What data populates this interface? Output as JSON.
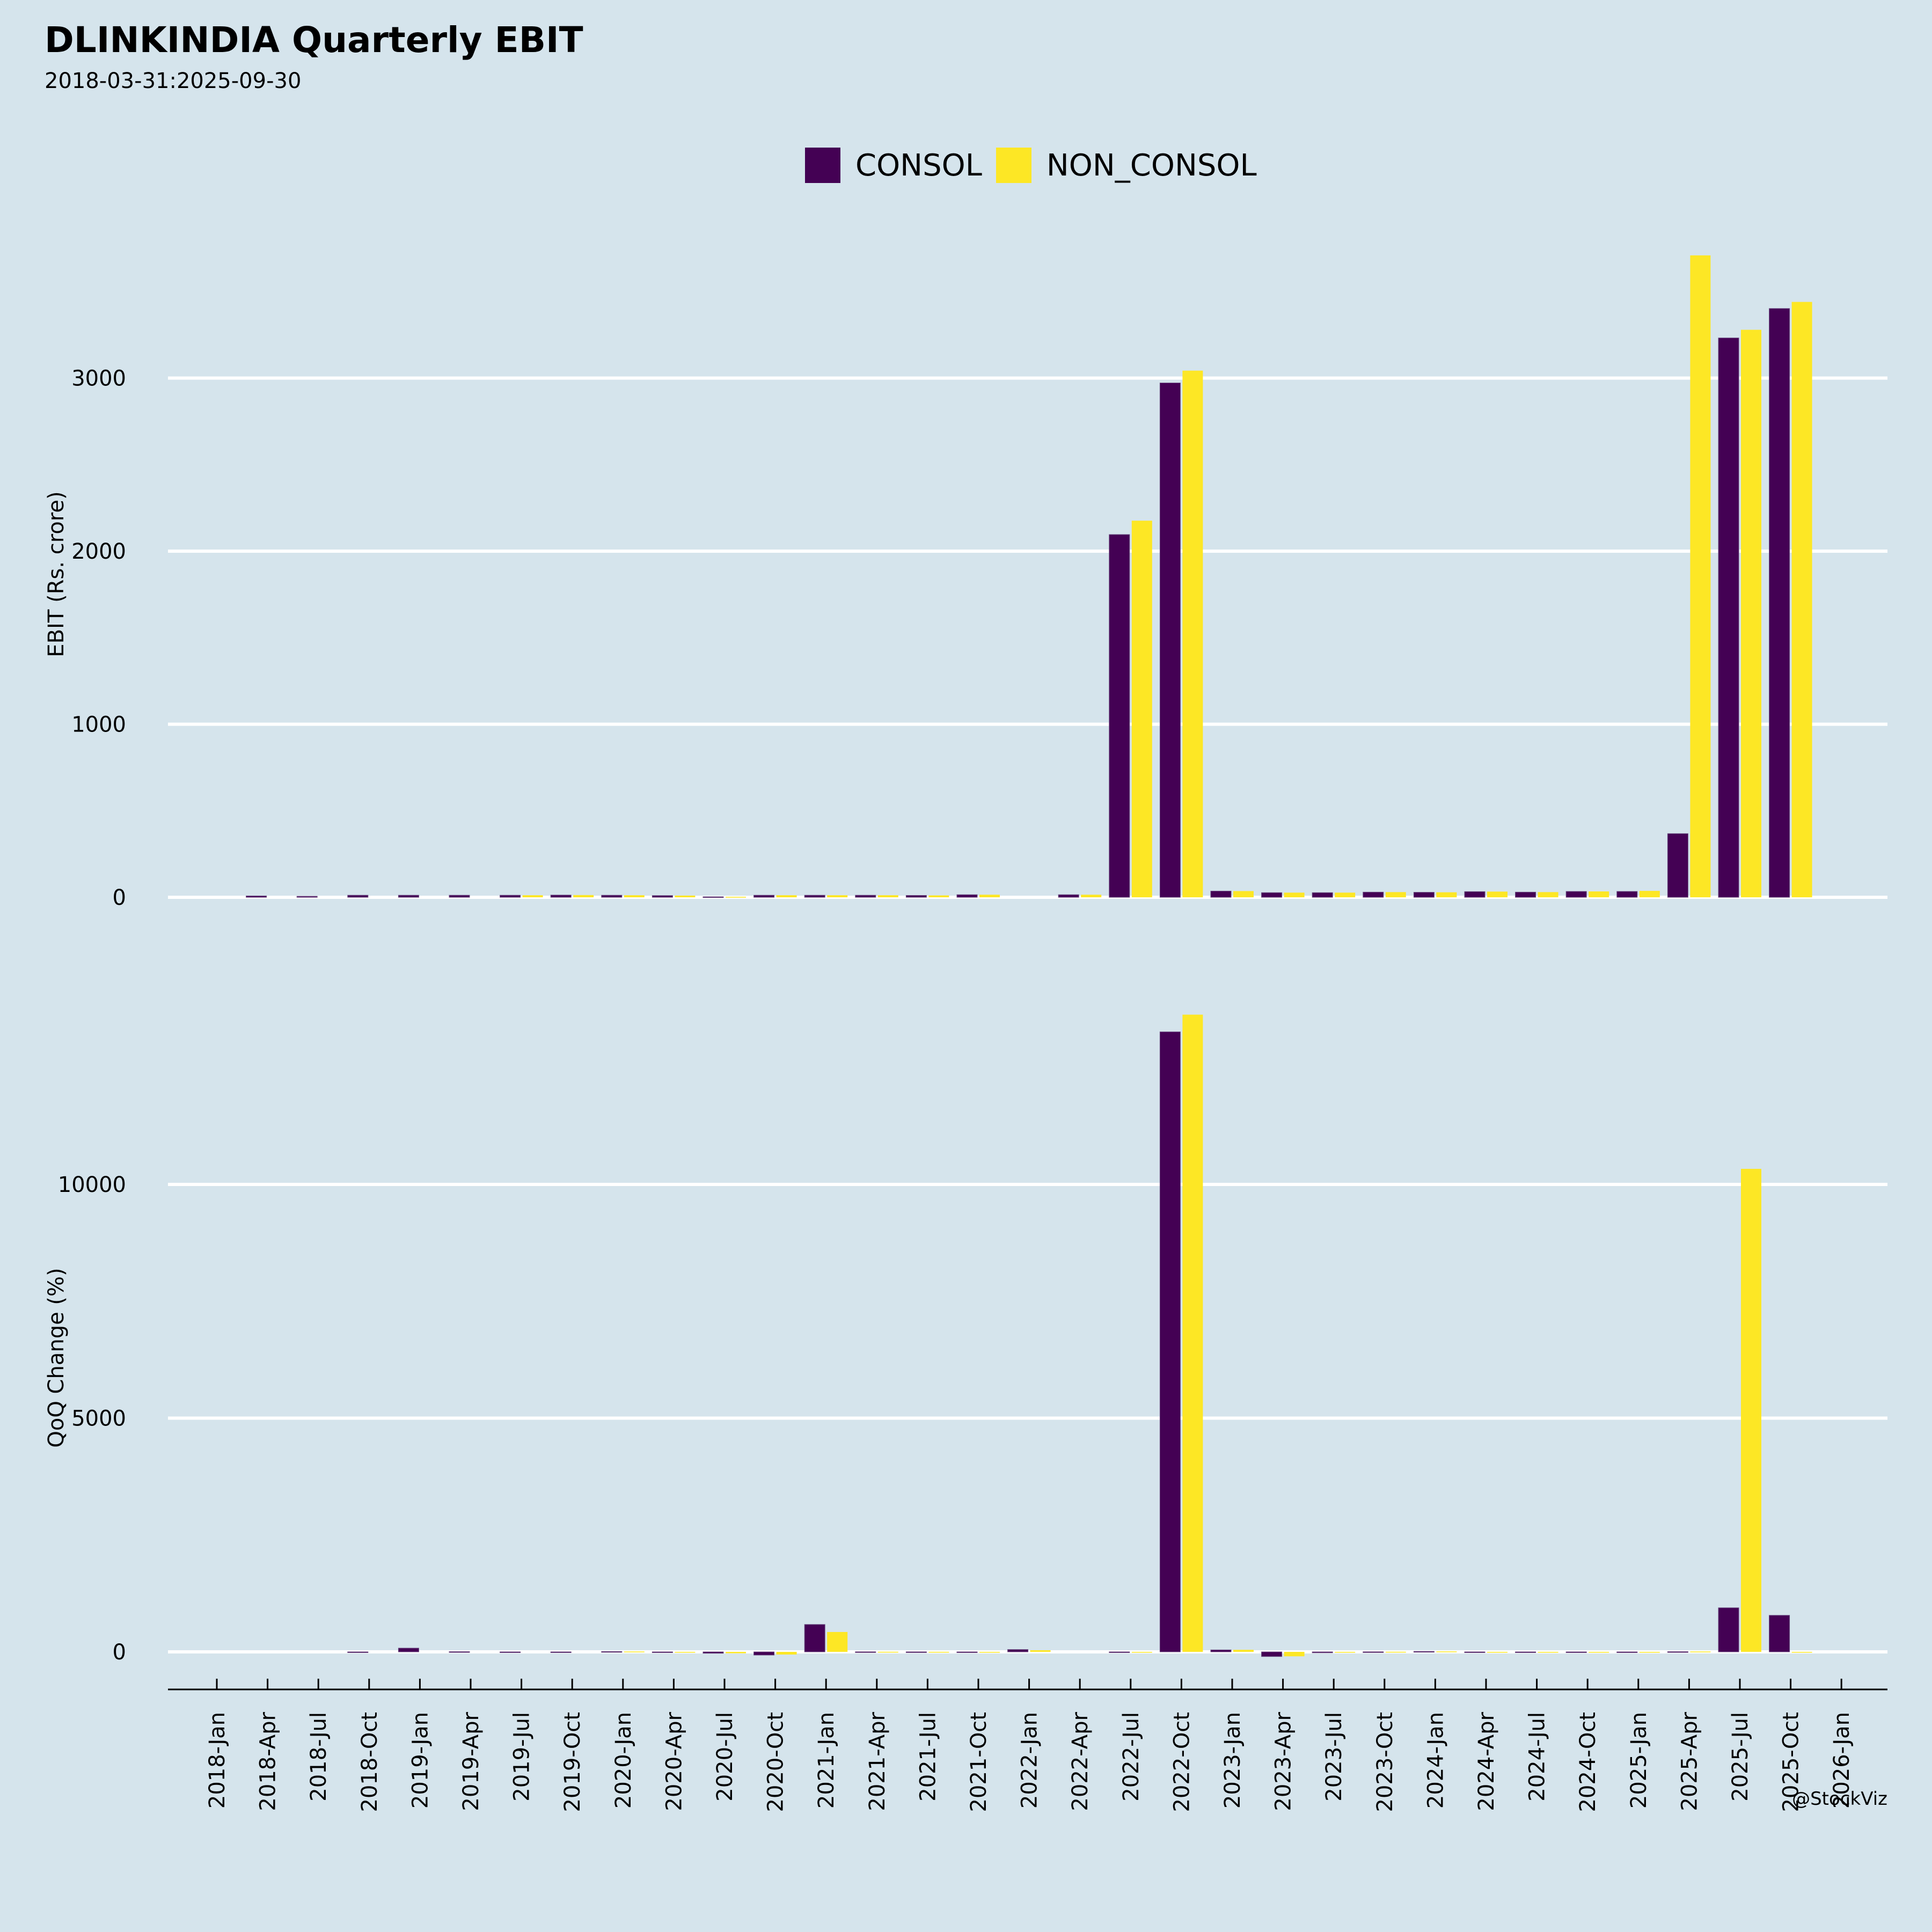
{
  "title": "DLINKINDIA Quarterly EBIT",
  "subtitle": "2018-03-31:2025-09-30",
  "watermark": "@StockViz",
  "colors": {
    "background": "#d5e4ec",
    "consol": "#440154",
    "non_consol": "#fde725",
    "grid": "#ffffff"
  },
  "legend": [
    {
      "label": "CONSOL",
      "color": "#440154"
    },
    {
      "label": "NON_CONSOL",
      "color": "#fde725"
    }
  ],
  "chart_data": [
    {
      "type": "bar",
      "title": "DLINKINDIA Quarterly EBIT",
      "xlabel": "",
      "ylabel": "EBIT (Rs. crore)",
      "ylim": [
        0,
        3900
      ],
      "yticks": [
        0,
        1000,
        2000,
        3000
      ],
      "grid": true,
      "legend_position": "top-center",
      "x": [
        "2018-03-31",
        "2018-06-30",
        "2018-09-30",
        "2018-12-31",
        "2019-03-31",
        "2019-06-30",
        "2019-09-30",
        "2019-12-31",
        "2020-03-31",
        "2020-06-30",
        "2020-09-30",
        "2020-12-31",
        "2021-03-31",
        "2021-06-30",
        "2021-09-30",
        "2021-12-31",
        "2022-03-31",
        "2022-06-30",
        "2022-09-30",
        "2022-12-31",
        "2023-03-31",
        "2023-06-30",
        "2023-09-30",
        "2023-12-31",
        "2024-03-31",
        "2024-06-30",
        "2024-09-30",
        "2024-12-31",
        "2025-03-31",
        "2025-06-30",
        "2025-09-30"
      ],
      "series": [
        {
          "name": "CONSOL",
          "values": [
            8,
            6,
            12,
            12,
            12,
            12,
            13,
            12,
            10,
            3,
            12,
            12,
            12,
            11,
            15,
            null,
            15,
            2096,
            2972,
            36,
            27,
            27,
            30,
            29,
            33,
            30,
            34,
            34,
            368,
            3232,
            3402
          ]
        },
        {
          "name": "NON_CONSOL",
          "values": [
            null,
            null,
            null,
            null,
            null,
            12,
            13,
            12,
            10,
            3,
            12,
            12,
            12,
            11,
            15,
            null,
            15,
            2176,
            3043,
            36,
            27,
            27,
            30,
            29,
            33,
            30,
            34,
            37,
            3709,
            3279,
            3440
          ]
        }
      ]
    },
    {
      "type": "bar",
      "xlabel": "",
      "ylabel": "QoQ Change (%)",
      "ylim": [
        -350,
        14500
      ],
      "yticks": [
        0,
        5000,
        10000
      ],
      "grid": true,
      "x": [
        "2018-03-31",
        "2018-06-30",
        "2018-09-30",
        "2018-12-31",
        "2019-03-31",
        "2019-06-30",
        "2019-09-30",
        "2019-12-31",
        "2020-03-31",
        "2020-06-30",
        "2020-09-30",
        "2020-12-31",
        "2021-03-31",
        "2021-06-30",
        "2021-09-30",
        "2021-12-31",
        "2022-03-31",
        "2022-06-30",
        "2022-09-30",
        "2022-12-31",
        "2023-03-31",
        "2023-06-30",
        "2023-09-30",
        "2023-12-31",
        "2024-03-31",
        "2024-06-30",
        "2024-09-30",
        "2024-12-31",
        "2025-03-31",
        "2025-06-30",
        "2025-09-30"
      ],
      "xtick_labels": [
        "2018-Jan",
        "2018-Apr",
        "2018-Jul",
        "2018-Oct",
        "2019-Jan",
        "2019-Apr",
        "2019-Jul",
        "2019-Oct",
        "2020-Jan",
        "2020-Apr",
        "2020-Jul",
        "2020-Oct",
        "2021-Jan",
        "2021-Apr",
        "2021-Jul",
        "2021-Oct",
        "2022-Jan",
        "2022-Apr",
        "2022-Jul",
        "2022-Oct",
        "2023-Jan",
        "2023-Apr",
        "2023-Jul",
        "2023-Oct",
        "2024-Jan",
        "2024-Apr",
        "2024-Jul",
        "2024-Oct",
        "2025-Jan",
        "2025-Apr",
        "2025-Jul",
        "2025-Oct",
        "2026-Jan"
      ],
      "series": [
        {
          "name": "CONSOL",
          "values": [
            null,
            null,
            -15,
            80,
            5,
            -5,
            0,
            8,
            -8,
            -30,
            -69,
            586,
            2,
            1,
            -15,
            50,
            null,
            0,
            13264,
            42,
            -100,
            -20,
            2,
            10,
            -5,
            -8,
            -5,
            -10,
            5,
            943,
            782
          ]
        },
        {
          "name": "NON_CONSOL",
          "values": [
            null,
            null,
            null,
            null,
            null,
            null,
            null,
            8,
            -8,
            -30,
            -57,
            425,
            2,
            1,
            -10,
            35,
            null,
            0,
            13632,
            44,
            -95,
            -15,
            2,
            10,
            -5,
            -8,
            -5,
            -10,
            8,
            10333,
            -12
          ]
        }
      ]
    }
  ]
}
